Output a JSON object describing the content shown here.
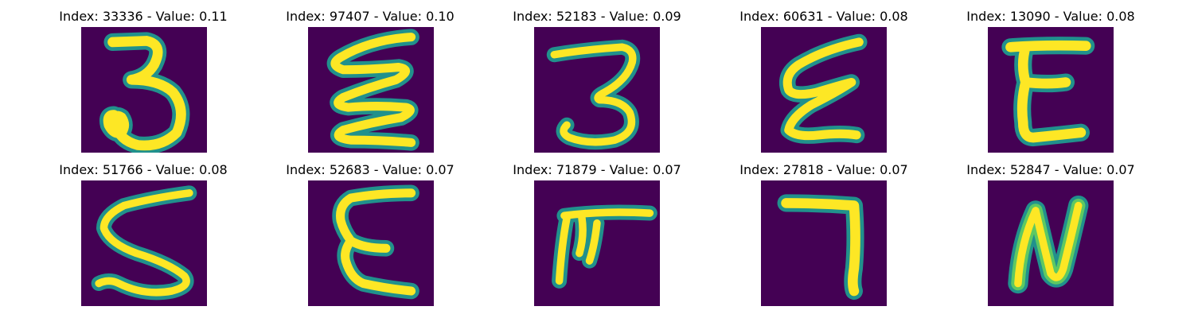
{
  "figure": {
    "background": "#ffffff",
    "colormap": "viridis",
    "image_background": "#440154",
    "stroke_edge_color": "#21918c",
    "stroke_mid_color": "#5ec962",
    "stroke_core_color": "#fde725",
    "grid": {
      "rows": 2,
      "columns": 5
    },
    "panels": [
      {
        "title": "Index: 33336 - Value: 0.11",
        "index": 33336,
        "value": 0.11,
        "depicted_glyph": "3"
      },
      {
        "title": "Index: 97407 - Value: 0.10",
        "index": 97407,
        "value": 0.1,
        "depicted_glyph": "Σ-like zigzag (Ɛ)"
      },
      {
        "title": "Index: 52183 - Value: 0.09",
        "index": 52183,
        "value": 0.09,
        "depicted_glyph": "3"
      },
      {
        "title": "Index: 60631 - Value: 0.08",
        "index": 60631,
        "value": 0.08,
        "depicted_glyph": "Ɛ"
      },
      {
        "title": "Index: 13090 - Value: 0.08",
        "index": 13090,
        "value": 0.08,
        "depicted_glyph": "E"
      },
      {
        "title": "Index: 51766 - Value: 0.08",
        "index": 51766,
        "value": 0.08,
        "depicted_glyph": "S"
      },
      {
        "title": "Index: 52683 - Value: 0.07",
        "index": 52683,
        "value": 0.07,
        "depicted_glyph": "Ɛ"
      },
      {
        "title": "Index: 71879 - Value: 0.07",
        "index": 71879,
        "value": 0.07,
        "depicted_glyph": "F-like"
      },
      {
        "title": "Index: 27818 - Value: 0.07",
        "index": 27818,
        "value": 0.07,
        "depicted_glyph": "7"
      },
      {
        "title": "Index: 52847 - Value: 0.07",
        "index": 52847,
        "value": 0.07,
        "depicted_glyph": "N"
      }
    ]
  }
}
